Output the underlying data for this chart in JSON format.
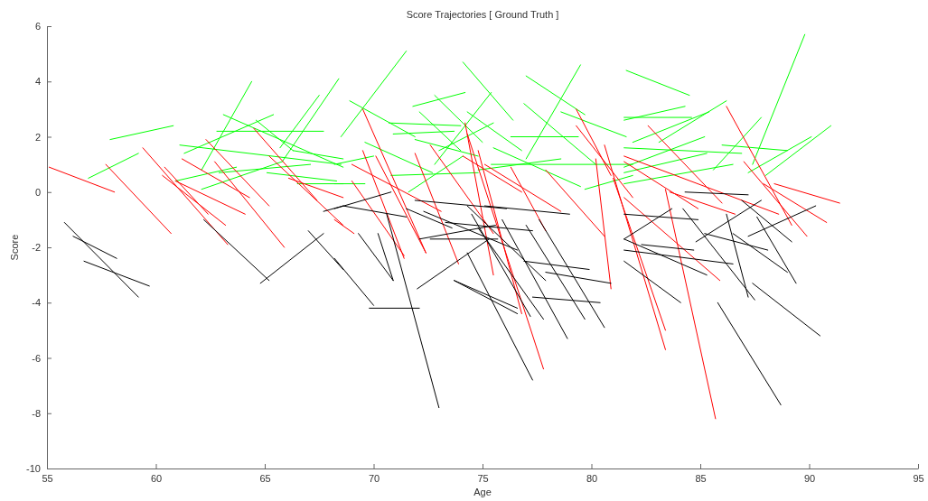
{
  "chart_data": {
    "type": "line",
    "title": "Score Trajectories [ Ground Truth ]",
    "xlabel": "Age",
    "ylabel": "Score",
    "xlim": [
      55,
      95
    ],
    "xticks": [
      55,
      60,
      65,
      70,
      75,
      80,
      85,
      90,
      95
    ],
    "ylim": [
      -10,
      6
    ],
    "yticks": [
      -10,
      -8,
      -6,
      -4,
      -2,
      0,
      2,
      4,
      6
    ],
    "grid": false,
    "series": [
      {
        "color": "#00ff00",
        "x": [
          56.9,
          59.2
        ],
        "values": [
          0.5,
          1.4
        ]
      },
      {
        "color": "#00ff00",
        "x": [
          57.9,
          60.8
        ],
        "values": [
          1.9,
          2.4
        ]
      },
      {
        "color": "#00ff00",
        "x": [
          62.1,
          64.4
        ],
        "values": [
          0.8,
          4.0
        ]
      },
      {
        "color": "#00ff00",
        "x": [
          61.1,
          68.5
        ],
        "values": [
          1.7,
          1.0
        ]
      },
      {
        "color": "#00ff00",
        "x": [
          61.3,
          65.4
        ],
        "values": [
          1.4,
          2.8
        ]
      },
      {
        "color": "#00ff00",
        "x": [
          63.1,
          68.6
        ],
        "values": [
          2.8,
          0.9
        ]
      },
      {
        "color": "#00ff00",
        "x": [
          60.9,
          63.7
        ],
        "values": [
          0.4,
          0.9
        ]
      },
      {
        "color": "#00ff00",
        "x": [
          62.1,
          65.8
        ],
        "values": [
          0.1,
          1.1
        ]
      },
      {
        "color": "#00ff00",
        "x": [
          62.8,
          67.7
        ],
        "values": [
          2.2,
          2.2
        ]
      },
      {
        "color": "#00ff00",
        "x": [
          65.7,
          67.5
        ],
        "values": [
          1.6,
          3.5
        ]
      },
      {
        "color": "#00ff00",
        "x": [
          65.8,
          68.4
        ],
        "values": [
          1.1,
          4.1
        ]
      },
      {
        "color": "#00ff00",
        "x": [
          65.1,
          68.3
        ],
        "values": [
          0.7,
          0.4
        ]
      },
      {
        "color": "#00ff00",
        "x": [
          62.9,
          67.1
        ],
        "values": [
          0.7,
          1.0
        ]
      },
      {
        "color": "#00ff00",
        "x": [
          64.6,
          66.3
        ],
        "values": [
          2.6,
          1.5
        ]
      },
      {
        "color": "#00ff00",
        "x": [
          66.3,
          68.6
        ],
        "values": [
          1.5,
          1.2
        ]
      },
      {
        "color": "#00ff00",
        "x": [
          66.5,
          68.6
        ],
        "values": [
          0.3,
          0.3
        ]
      },
      {
        "color": "#00ff00",
        "x": [
          68.5,
          71.5
        ],
        "values": [
          2.0,
          5.1
        ]
      },
      {
        "color": "#00ff00",
        "x": [
          68.9,
          71.9
        ],
        "values": [
          3.3,
          2.0
        ]
      },
      {
        "color": "#00ff00",
        "x": [
          70.7,
          74.0
        ],
        "values": [
          2.5,
          2.4
        ]
      },
      {
        "color": "#00ff00",
        "x": [
          70.9,
          73.7
        ],
        "values": [
          2.1,
          2.2
        ]
      },
      {
        "color": "#00ff00",
        "x": [
          74.1,
          76.4
        ],
        "values": [
          4.7,
          2.6
        ]
      },
      {
        "color": "#00ff00",
        "x": [
          71.8,
          74.2
        ],
        "values": [
          3.1,
          3.6
        ]
      },
      {
        "color": "#00ff00",
        "x": [
          72.8,
          75.0
        ],
        "values": [
          3.5,
          1.8
        ]
      },
      {
        "color": "#00ff00",
        "x": [
          72.1,
          74.0
        ],
        "values": [
          2.9,
          1.5
        ]
      },
      {
        "color": "#00ff00",
        "x": [
          71.9,
          74.8
        ],
        "values": [
          1.9,
          1.3
        ]
      },
      {
        "color": "#00ff00",
        "x": [
          68.2,
          70.0
        ],
        "values": [
          1.0,
          1.3
        ]
      },
      {
        "color": "#00ff00",
        "x": [
          68.2,
          69.6
        ],
        "values": [
          0.3,
          0.3
        ]
      },
      {
        "color": "#00ff00",
        "x": [
          69.6,
          72.7
        ],
        "values": [
          1.8,
          0.7
        ]
      },
      {
        "color": "#00ff00",
        "x": [
          70.8,
          74.8
        ],
        "values": [
          0.6,
          0.7
        ]
      },
      {
        "color": "#00ff00",
        "x": [
          71.6,
          74.1
        ],
        "values": [
          0.0,
          1.3
        ]
      },
      {
        "color": "#00ff00",
        "x": [
          72.8,
          75.4
        ],
        "values": [
          1.0,
          3.6
        ]
      },
      {
        "color": "#00ff00",
        "x": [
          73.0,
          75.5
        ],
        "values": [
          1.5,
          2.5
        ]
      },
      {
        "color": "#00ff00",
        "x": [
          74.3,
          76.8
        ],
        "values": [
          2.9,
          1.5
        ]
      },
      {
        "color": "#00ff00",
        "x": [
          77.0,
          79.7
        ],
        "values": [
          4.2,
          2.8
        ]
      },
      {
        "color": "#00ff00",
        "x": [
          77.0,
          79.5
        ],
        "values": [
          1.2,
          4.6
        ]
      },
      {
        "color": "#00ff00",
        "x": [
          76.9,
          80.2
        ],
        "values": [
          3.2,
          1.0
        ]
      },
      {
        "color": "#00ff00",
        "x": [
          76.3,
          79.4
        ],
        "values": [
          2.0,
          2.0
        ]
      },
      {
        "color": "#00ff00",
        "x": [
          74.8,
          78.6
        ],
        "values": [
          0.8,
          1.2
        ]
      },
      {
        "color": "#00ff00",
        "x": [
          75.4,
          81.9
        ],
        "values": [
          1.0,
          1.0
        ]
      },
      {
        "color": "#00ff00",
        "x": [
          75.5,
          79.5
        ],
        "values": [
          1.6,
          0.2
        ]
      },
      {
        "color": "#00ff00",
        "x": [
          78.6,
          81.6
        ],
        "values": [
          2.9,
          2.0
        ]
      },
      {
        "color": "#00ff00",
        "x": [
          79.7,
          81.9
        ],
        "values": [
          0.1,
          0.6
        ]
      },
      {
        "color": "#00ff00",
        "x": [
          81.6,
          84.5
        ],
        "values": [
          4.4,
          3.5
        ]
      },
      {
        "color": "#00ff00",
        "x": [
          81.5,
          84.3
        ],
        "values": [
          2.6,
          3.1
        ]
      },
      {
        "color": "#00ff00",
        "x": [
          81.9,
          85.4
        ],
        "values": [
          1.8,
          2.9
        ]
      },
      {
        "color": "#00ff00",
        "x": [
          81.5,
          84.6
        ],
        "values": [
          2.7,
          2.7
        ]
      },
      {
        "color": "#00ff00",
        "x": [
          83.1,
          86.2
        ],
        "values": [
          1.8,
          3.3
        ]
      },
      {
        "color": "#00ff00",
        "x": [
          81.5,
          86.9
        ],
        "values": [
          1.6,
          1.4
        ]
      },
      {
        "color": "#00ff00",
        "x": [
          81.5,
          85.3
        ],
        "values": [
          0.7,
          1.4
        ]
      },
      {
        "color": "#00ff00",
        "x": [
          85.6,
          87.8
        ],
        "values": [
          0.8,
          2.7
        ]
      },
      {
        "color": "#00ff00",
        "x": [
          86.0,
          89.0
        ],
        "values": [
          1.7,
          1.5
        ]
      },
      {
        "color": "#00ff00",
        "x": [
          87.4,
          89.8
        ],
        "values": [
          1.0,
          5.7
        ]
      },
      {
        "color": "#00ff00",
        "x": [
          87.2,
          90.1
        ],
        "values": [
          0.7,
          2.0
        ]
      },
      {
        "color": "#00ff00",
        "x": [
          88.0,
          91.0
        ],
        "values": [
          0.6,
          2.4
        ]
      },
      {
        "color": "#00ff00",
        "x": [
          81.5,
          86.5
        ],
        "values": [
          0.3,
          1.0
        ]
      },
      {
        "color": "#00ff00",
        "x": [
          81.5,
          85.2
        ],
        "values": [
          0.9,
          2.0
        ]
      },
      {
        "color": "#ff0000",
        "x": [
          55.1,
          58.1
        ],
        "values": [
          0.9,
          0.0
        ]
      },
      {
        "color": "#ff0000",
        "x": [
          57.7,
          60.7
        ],
        "values": [
          1.0,
          -1.5
        ]
      },
      {
        "color": "#ff0000",
        "x": [
          59.4,
          63.3
        ],
        "values": [
          1.6,
          -1.9
        ]
      },
      {
        "color": "#ff0000",
        "x": [
          60.3,
          63.2
        ],
        "values": [
          0.6,
          -1.2
        ]
      },
      {
        "color": "#ff0000",
        "x": [
          60.4,
          62.4
        ],
        "values": [
          0.9,
          -0.8
        ]
      },
      {
        "color": "#ff0000",
        "x": [
          61.2,
          64.3
        ],
        "values": [
          1.2,
          -0.2
        ]
      },
      {
        "color": "#ff0000",
        "x": [
          60.9,
          64.1
        ],
        "values": [
          0.4,
          -0.8
        ]
      },
      {
        "color": "#ff0000",
        "x": [
          62.3,
          65.2
        ],
        "values": [
          1.9,
          -0.5
        ]
      },
      {
        "color": "#ff0000",
        "x": [
          62.7,
          65.9
        ],
        "values": [
          1.1,
          -2.0
        ]
      },
      {
        "color": "#ff0000",
        "x": [
          64.5,
          67.4
        ],
        "values": [
          2.3,
          -0.3
        ]
      },
      {
        "color": "#ff0000",
        "x": [
          65.2,
          68.6
        ],
        "values": [
          1.3,
          -1.2
        ]
      },
      {
        "color": "#ff0000",
        "x": [
          66.1,
          68.6
        ],
        "values": [
          0.5,
          -0.2
        ]
      },
      {
        "color": "#ff0000",
        "x": [
          69.5,
          72.4
        ],
        "values": [
          3.0,
          -2.2
        ]
      },
      {
        "color": "#ff0000",
        "x": [
          68.2,
          69.1
        ],
        "values": [
          -1.0,
          -1.5
        ]
      },
      {
        "color": "#ff0000",
        "x": [
          69.5,
          71.4
        ],
        "values": [
          1.5,
          -2.4
        ]
      },
      {
        "color": "#ff0000",
        "x": [
          69.0,
          71.4
        ],
        "values": [
          0.4,
          -2.3
        ]
      },
      {
        "color": "#ff0000",
        "x": [
          70.1,
          72.4
        ],
        "values": [
          1.3,
          -2.2
        ]
      },
      {
        "color": "#ff0000",
        "x": [
          69.0,
          73.1
        ],
        "values": [
          1.0,
          -0.7
        ]
      },
      {
        "color": "#ff0000",
        "x": [
          71.9,
          73.9
        ],
        "values": [
          1.4,
          -2.6
        ]
      },
      {
        "color": "#ff0000",
        "x": [
          72.6,
          75.5
        ],
        "values": [
          1.7,
          -1.5
        ]
      },
      {
        "color": "#ff0000",
        "x": [
          74.2,
          75.5
        ],
        "values": [
          2.5,
          -3.0
        ]
      },
      {
        "color": "#ff0000",
        "x": [
          74.8,
          76.8
        ],
        "values": [
          1.5,
          -4.4
        ]
      },
      {
        "color": "#ff0000",
        "x": [
          74.1,
          76.8
        ],
        "values": [
          1.3,
          0.0
        ]
      },
      {
        "color": "#ff0000",
        "x": [
          75.1,
          78.6
        ],
        "values": [
          1.0,
          -0.7
        ]
      },
      {
        "color": "#ff0000",
        "x": [
          76.3,
          77.9
        ],
        "values": [
          0.9,
          -1.4
        ]
      },
      {
        "color": "#ff0000",
        "x": [
          77.9,
          80.6
        ],
        "values": [
          0.8,
          -1.6
        ]
      },
      {
        "color": "#ff0000",
        "x": [
          79.3,
          80.9
        ],
        "values": [
          3.0,
          0.6
        ]
      },
      {
        "color": "#ff0000",
        "x": [
          79.3,
          81.9
        ],
        "values": [
          2.4,
          -0.2
        ]
      },
      {
        "color": "#ff0000",
        "x": [
          80.2,
          80.9
        ],
        "values": [
          1.2,
          -3.5
        ]
      },
      {
        "color": "#ff0000",
        "x": [
          74.3,
          77.8
        ],
        "values": [
          2.1,
          -6.4
        ]
      },
      {
        "color": "#ff0000",
        "x": [
          82.6,
          86.0
        ],
        "values": [
          2.4,
          -0.4
        ]
      },
      {
        "color": "#ff0000",
        "x": [
          86.2,
          89.2
        ],
        "values": [
          3.1,
          -1.2
        ]
      },
      {
        "color": "#ff0000",
        "x": [
          87.0,
          89.9
        ],
        "values": [
          1.1,
          -1.6
        ]
      },
      {
        "color": "#ff0000",
        "x": [
          88.4,
          91.4
        ],
        "values": [
          0.3,
          -0.4
        ]
      },
      {
        "color": "#ff0000",
        "x": [
          87.9,
          90.8
        ],
        "values": [
          0.3,
          -1.1
        ]
      },
      {
        "color": "#ff0000",
        "x": [
          81.5,
          88.6
        ],
        "values": [
          1.3,
          -0.8
        ]
      },
      {
        "color": "#ff0000",
        "x": [
          83.4,
          85.7
        ],
        "values": [
          0.1,
          -8.2
        ]
      },
      {
        "color": "#ff0000",
        "x": [
          80.6,
          83.4
        ],
        "values": [
          1.7,
          -5.7
        ]
      },
      {
        "color": "#ff0000",
        "x": [
          81.0,
          83.4
        ],
        "values": [
          0.5,
          -5.0
        ]
      },
      {
        "color": "#ff0000",
        "x": [
          83.6,
          86.6
        ],
        "values": [
          0.0,
          -0.8
        ]
      },
      {
        "color": "#ff0000",
        "x": [
          81.5,
          85.9
        ],
        "values": [
          -0.2,
          -3.2
        ]
      },
      {
        "color": "#ff0000",
        "x": [
          81.5,
          84.9
        ],
        "values": [
          1.1,
          -0.6
        ]
      },
      {
        "color": "#000000",
        "x": [
          55.8,
          59.2
        ],
        "values": [
          -1.1,
          -3.8
        ]
      },
      {
        "color": "#000000",
        "x": [
          56.2,
          58.2
        ],
        "values": [
          -1.6,
          -2.4
        ]
      },
      {
        "color": "#000000",
        "x": [
          56.7,
          59.7
        ],
        "values": [
          -2.5,
          -3.4
        ]
      },
      {
        "color": "#000000",
        "x": [
          62.2,
          65.2
        ],
        "values": [
          -1.0,
          -3.2
        ]
      },
      {
        "color": "#000000",
        "x": [
          64.8,
          67.7
        ],
        "values": [
          -3.3,
          -1.5
        ]
      },
      {
        "color": "#000000",
        "x": [
          67.0,
          68.6
        ],
        "values": [
          -1.4,
          -2.8
        ]
      },
      {
        "color": "#000000",
        "x": [
          67.7,
          68.6
        ],
        "values": [
          -0.7,
          -0.5
        ]
      },
      {
        "color": "#000000",
        "x": [
          68.2,
          70.0
        ],
        "values": [
          -2.4,
          -4.1
        ]
      },
      {
        "color": "#000000",
        "x": [
          69.8,
          72.1
        ],
        "values": [
          -4.2,
          -4.2
        ]
      },
      {
        "color": "#000000",
        "x": [
          70.6,
          73.0
        ],
        "values": [
          -0.8,
          -7.8
        ]
      },
      {
        "color": "#000000",
        "x": [
          68.2,
          70.8
        ],
        "values": [
          -0.6,
          0.0
        ]
      },
      {
        "color": "#000000",
        "x": [
          68.6,
          71.5
        ],
        "values": [
          -0.5,
          -0.9
        ]
      },
      {
        "color": "#000000",
        "x": [
          70.2,
          70.9
        ],
        "values": [
          -1.5,
          -3.2
        ]
      },
      {
        "color": "#000000",
        "x": [
          71.5,
          73.6
        ],
        "values": [
          -0.6,
          -1.3
        ]
      },
      {
        "color": "#000000",
        "x": [
          71.9,
          76.1
        ],
        "values": [
          -0.3,
          -0.6
        ]
      },
      {
        "color": "#000000",
        "x": [
          72.1,
          75.6
        ],
        "values": [
          -1.7,
          -1.2
        ]
      },
      {
        "color": "#000000",
        "x": [
          72.0,
          75.3
        ],
        "values": [
          -3.5,
          -1.7
        ]
      },
      {
        "color": "#000000",
        "x": [
          72.3,
          76.6
        ],
        "values": [
          -0.7,
          -2.1
        ]
      },
      {
        "color": "#000000",
        "x": [
          72.6,
          75.7
        ],
        "values": [
          -1.7,
          -1.7
        ]
      },
      {
        "color": "#000000",
        "x": [
          73.7,
          76.6
        ],
        "values": [
          -3.2,
          -4.4
        ]
      },
      {
        "color": "#000000",
        "x": [
          74.3,
          77.9
        ],
        "values": [
          -0.5,
          -3.2
        ]
      },
      {
        "color": "#000000",
        "x": [
          73.3,
          77.3
        ],
        "values": [
          -1.1,
          -1.4
        ]
      },
      {
        "color": "#000000",
        "x": [
          75.1,
          79.0
        ],
        "values": [
          -0.5,
          -0.8
        ]
      },
      {
        "color": "#000000",
        "x": [
          74.5,
          77.2
        ],
        "values": [
          -0.8,
          -4.5
        ]
      },
      {
        "color": "#000000",
        "x": [
          74.3,
          77.3
        ],
        "values": [
          -2.2,
          -6.8
        ]
      },
      {
        "color": "#000000",
        "x": [
          73.7,
          76.6
        ],
        "values": [
          -3.2,
          -4.2
        ]
      },
      {
        "color": "#000000",
        "x": [
          76.9,
          79.9
        ],
        "values": [
          -2.5,
          -2.8
        ]
      },
      {
        "color": "#000000",
        "x": [
          77.3,
          80.4
        ],
        "values": [
          -3.8,
          -4.0
        ]
      },
      {
        "color": "#000000",
        "x": [
          77.9,
          80.9
        ],
        "values": [
          -2.9,
          -3.3
        ]
      },
      {
        "color": "#000000",
        "x": [
          77.0,
          79.7
        ],
        "values": [
          -1.2,
          -4.6
        ]
      },
      {
        "color": "#000000",
        "x": [
          77.6,
          80.6
        ],
        "values": [
          -1.0,
          -4.9
        ]
      },
      {
        "color": "#000000",
        "x": [
          75.9,
          78.9
        ],
        "values": [
          -1.0,
          -5.3
        ]
      },
      {
        "color": "#000000",
        "x": [
          74.8,
          77.8
        ],
        "values": [
          -1.3,
          -4.6
        ]
      },
      {
        "color": "#000000",
        "x": [
          69.3,
          70.9
        ],
        "values": [
          -1.5,
          -3.2
        ]
      },
      {
        "color": "#000000",
        "x": [
          84.3,
          87.2
        ],
        "values": [
          0.0,
          -0.1
        ]
      },
      {
        "color": "#000000",
        "x": [
          86.9,
          89.2
        ],
        "values": [
          -0.3,
          -1.8
        ]
      },
      {
        "color": "#000000",
        "x": [
          87.2,
          90.3
        ],
        "values": [
          -1.6,
          -0.5
        ]
      },
      {
        "color": "#000000",
        "x": [
          84.8,
          87.8
        ],
        "values": [
          -1.8,
          -0.3
        ]
      },
      {
        "color": "#000000",
        "x": [
          86.5,
          89.0
        ],
        "values": [
          -1.5,
          -2.9
        ]
      },
      {
        "color": "#000000",
        "x": [
          87.6,
          89.4
        ],
        "values": [
          -0.9,
          -3.3
        ]
      },
      {
        "color": "#000000",
        "x": [
          85.2,
          88.1
        ],
        "values": [
          -1.5,
          -2.1
        ]
      },
      {
        "color": "#000000",
        "x": [
          84.2,
          87.5
        ],
        "values": [
          -0.6,
          -3.9
        ]
      },
      {
        "color": "#000000",
        "x": [
          86.2,
          87.2
        ],
        "values": [
          -0.8,
          -3.8
        ]
      },
      {
        "color": "#000000",
        "x": [
          81.5,
          86.5
        ],
        "values": [
          -2.1,
          -2.6
        ]
      },
      {
        "color": "#000000",
        "x": [
          81.5,
          84.1
        ],
        "values": [
          -2.5,
          -4.0
        ]
      },
      {
        "color": "#000000",
        "x": [
          81.5,
          85.3
        ],
        "values": [
          -1.7,
          -3.0
        ]
      },
      {
        "color": "#000000",
        "x": [
          82.3,
          84.7
        ],
        "values": [
          -1.9,
          -2.1
        ]
      },
      {
        "color": "#000000",
        "x": [
          87.4,
          90.5
        ],
        "values": [
          -3.3,
          -5.2
        ]
      },
      {
        "color": "#000000",
        "x": [
          85.8,
          88.7
        ],
        "values": [
          -4.0,
          -7.7
        ]
      },
      {
        "color": "#000000",
        "x": [
          81.5,
          83.7
        ],
        "values": [
          -1.7,
          -0.6
        ]
      },
      {
        "color": "#000000",
        "x": [
          81.5,
          84.9
        ],
        "values": [
          -0.8,
          -1.0
        ]
      }
    ]
  }
}
